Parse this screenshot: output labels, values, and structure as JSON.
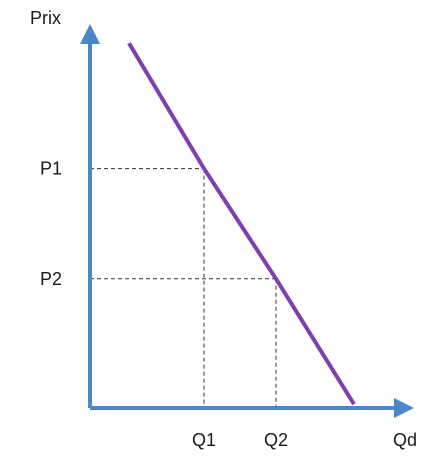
{
  "chart_data": {
    "type": "line",
    "xlabel": "Qd",
    "ylabel": "Prix",
    "series": [
      {
        "points": [
          {
            "x": 0.13,
            "y": 0.96
          },
          {
            "x": 0.38,
            "y": 0.63
          },
          {
            "x": 0.62,
            "y": 0.34
          },
          {
            "x": 0.88,
            "y": 0.01
          }
        ]
      }
    ],
    "reference_points": [
      {
        "x": 0.38,
        "y": 0.63,
        "x_label": "Q1",
        "y_label": "P1"
      },
      {
        "x": 0.62,
        "y": 0.34,
        "x_label": "Q2",
        "y_label": "P2"
      }
    ],
    "xlim": [
      0,
      1
    ],
    "ylim": [
      0,
      1
    ],
    "grid": false,
    "colors": {
      "axis": "#4a86c8",
      "line": "#7e3fb0",
      "guide": "#333333"
    }
  }
}
